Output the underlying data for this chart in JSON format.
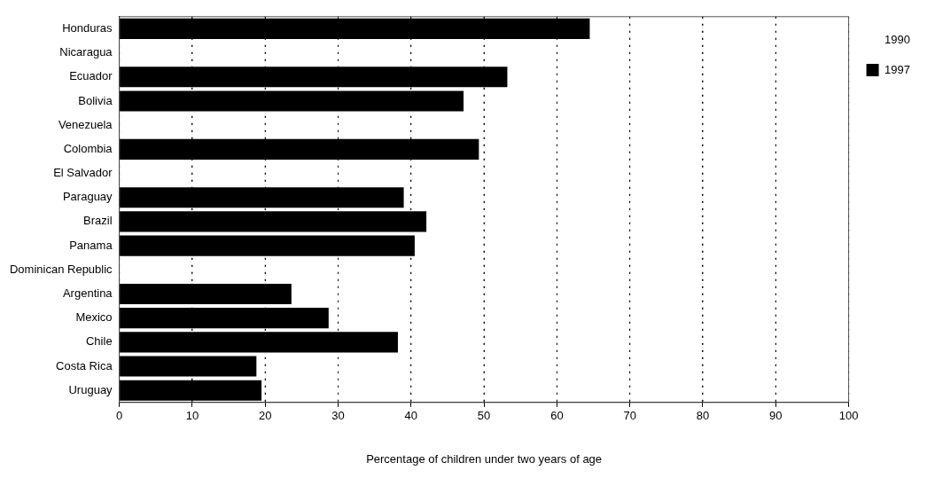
{
  "chart_data": {
    "type": "bar",
    "orientation": "horizontal",
    "xlabel": "Percentage of children under two years of age",
    "categories": [
      "Honduras",
      "Nicaragua",
      "Ecuador",
      "Bolivia",
      "Venezuela",
      "Colombia",
      "El Salvador",
      "Paraguay",
      "Brazil",
      "Panama",
      "Dominican Republic",
      "Argentina",
      "Mexico",
      "Chile",
      "Costa Rica",
      "Uruguay"
    ],
    "series": [
      {
        "name": "1990",
        "values": [
          null,
          null,
          null,
          null,
          null,
          null,
          null,
          null,
          null,
          null,
          null,
          null,
          null,
          null,
          null,
          null
        ]
      },
      {
        "name": "1997",
        "color": "#000000",
        "values": [
          64.5,
          null,
          53.2,
          47.2,
          null,
          49.3,
          null,
          39,
          42.1,
          40.5,
          null,
          23.6,
          28.7,
          38.2,
          18.8,
          19.5
        ]
      }
    ],
    "xlim": [
      0,
      100
    ],
    "xticks": [
      0,
      10,
      20,
      30,
      40,
      50,
      60,
      70,
      80,
      90,
      100
    ],
    "grid": "x",
    "legend": "right"
  }
}
